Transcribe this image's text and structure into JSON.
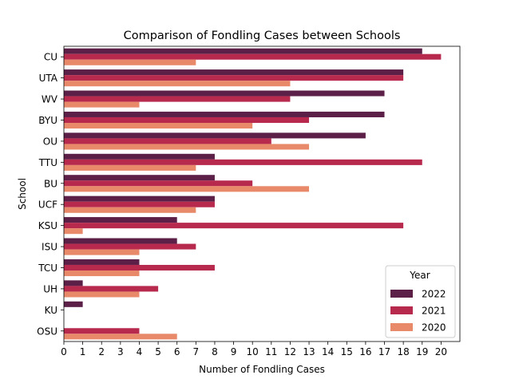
{
  "chart_data": {
    "type": "bar",
    "orientation": "horizontal",
    "title": "Comparison of Fondling Cases between Schools",
    "xlabel": "Number of Fondling Cases",
    "ylabel": "School",
    "xlim": [
      0,
      21
    ],
    "xticks": [
      0,
      1,
      2,
      3,
      4,
      5,
      6,
      7,
      8,
      9,
      10,
      11,
      12,
      13,
      14,
      15,
      16,
      17,
      18,
      19,
      20
    ],
    "grid": false,
    "legend": {
      "title": "Year",
      "placement": "lower-right"
    },
    "categories": [
      "CU",
      "UTA",
      "WV",
      "BYU",
      "OU",
      "TTU",
      "BU",
      "UCF",
      "KSU",
      "ISU",
      "TCU",
      "UH",
      "KU",
      "OSU"
    ],
    "series": [
      {
        "name": "2022",
        "color": "#5c2048",
        "values": [
          19,
          18,
          17,
          17,
          16,
          8,
          8,
          8,
          6,
          6,
          4,
          1,
          1,
          0
        ]
      },
      {
        "name": "2021",
        "color": "#b8294e",
        "values": [
          20,
          18,
          12,
          13,
          11,
          19,
          10,
          8,
          18,
          7,
          8,
          5,
          0,
          4
        ]
      },
      {
        "name": "2020",
        "color": "#e8896a",
        "values": [
          7,
          12,
          4,
          10,
          13,
          7,
          13,
          7,
          1,
          4,
          4,
          4,
          0,
          6
        ]
      }
    ]
  }
}
